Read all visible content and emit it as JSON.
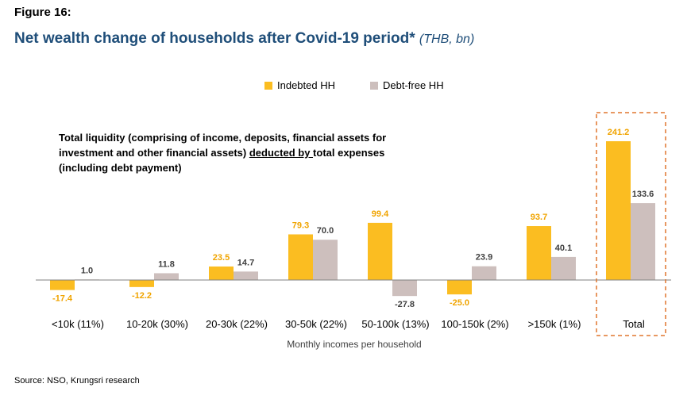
{
  "figure_label": "Figure 16:",
  "title_main": "Net wealth change of households after Covid-19 period*",
  "title_unit": "(THB, bn)",
  "annotation": {
    "part1": "Total liquidity (comprising of income, deposits, financial assets for investment and other financial assets) ",
    "underlined": "deducted by ",
    "part2": "total expenses (including debt payment)"
  },
  "source": "Source: NSO, Krungsri research",
  "colors": {
    "indebted": "#fbbd21",
    "debtfree": "#cdbfbd",
    "highlight": "#e0772e",
    "label_indebted": "#f0a400"
  },
  "chart_data": {
    "type": "bar",
    "title": "Net wealth change of households after Covid-19 period*",
    "xlabel": "Monthly incomes per household",
    "ylabel": "",
    "categories": [
      "<10k (11%)",
      "10-20k (30%)",
      "20-30k (22%)",
      "30-50k (22%)",
      "50-100k (13%)",
      "100-150k (2%)",
      ">150k (1%)",
      "Total"
    ],
    "series": [
      {
        "name": "Indebted HH",
        "values": [
          -17.4,
          -12.2,
          23.5,
          79.3,
          99.4,
          -25.0,
          93.7,
          241.2
        ]
      },
      {
        "name": "Debt-free HH",
        "values": [
          1.0,
          11.8,
          14.7,
          70.0,
          -27.8,
          23.9,
          40.1,
          133.6
        ]
      }
    ],
    "ylim": [
      -40,
      260
    ],
    "grid": false,
    "legend_position": "top-center",
    "highlighted_category": "Total"
  }
}
